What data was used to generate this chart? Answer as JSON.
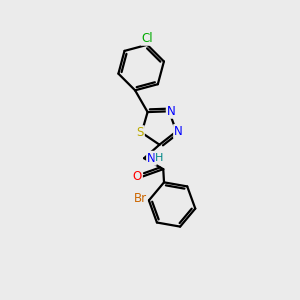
{
  "background_color": "#ebebeb",
  "atom_colors": {
    "C": "#000000",
    "N": "#0000ff",
    "S": "#bbaa00",
    "O": "#ff0000",
    "Br": "#cc6600",
    "Cl": "#00aa00",
    "H": "#008888"
  },
  "bond_color": "#000000",
  "bond_width": 1.6,
  "figsize": [
    3.0,
    3.0
  ],
  "dpi": 100,
  "xlim": [
    0,
    10
  ],
  "ylim": [
    0,
    10
  ]
}
